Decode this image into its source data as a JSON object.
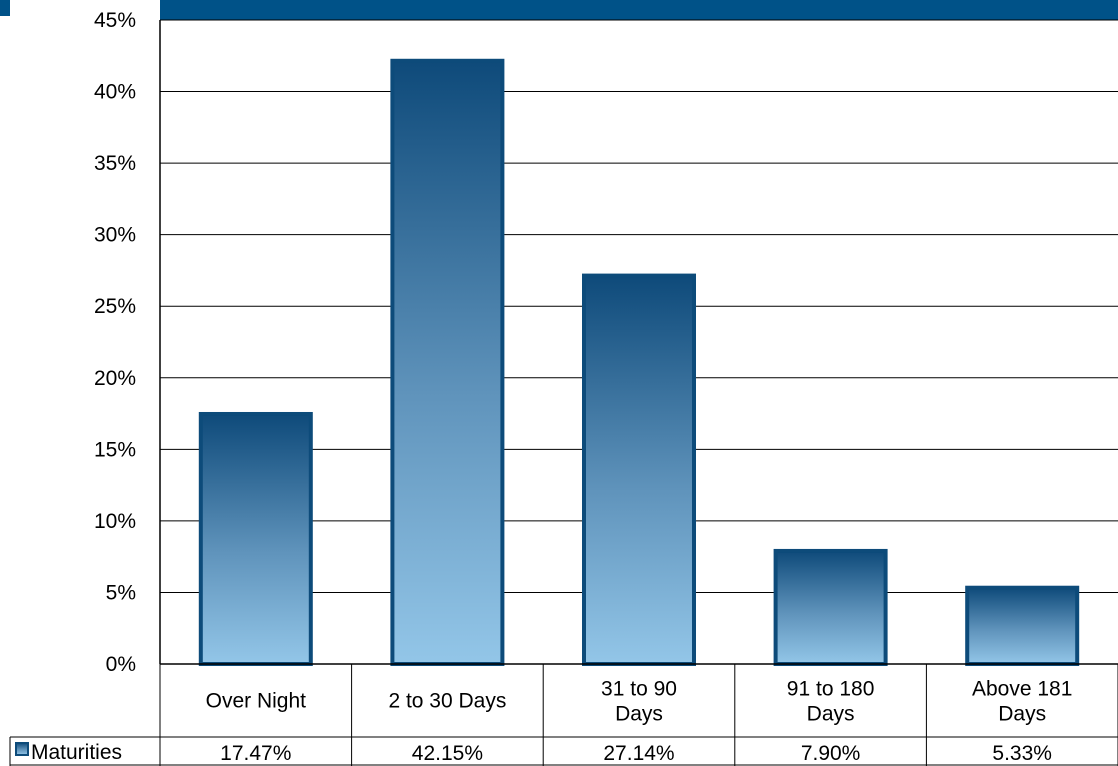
{
  "chart_data": {
    "type": "bar",
    "categories": [
      [
        "Over Night"
      ],
      [
        "2 to 30 Days"
      ],
      [
        "31 to 90",
        "Days"
      ],
      [
        "91 to 180",
        "Days"
      ],
      [
        "Above 181",
        "Days"
      ]
    ],
    "series": [
      {
        "name": "Maturities",
        "values": [
          17.47,
          42.15,
          27.14,
          7.9,
          5.33
        ],
        "value_labels": [
          "17.47%",
          "42.15%",
          "27.14%",
          "7.90%",
          "5.33%"
        ]
      }
    ],
    "ylim": [
      0,
      45
    ],
    "y_ticks": [
      "0%",
      "5%",
      "10%",
      "15%",
      "20%",
      "25%",
      "30%",
      "35%",
      "40%",
      "45%"
    ],
    "grid": true,
    "legend": "data-table",
    "colors": {
      "header_bar": "#005288",
      "bar_top": "#0e4a7a",
      "bar_bottom": "#93c6e8",
      "bar_border": "#0d4b7a"
    }
  }
}
